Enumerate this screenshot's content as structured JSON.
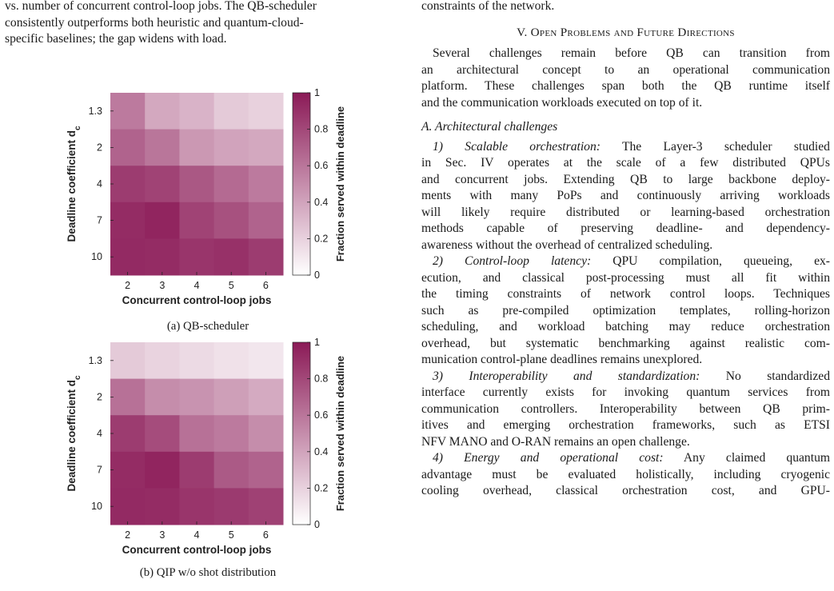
{
  "left_column": {
    "caption_tail_lines": [
      "vs. number of concurrent control-loop jobs. The QB-scheduler",
      "consistently outperforms both heuristic and quantum-cloud-",
      "specific baselines; the gap widens with load."
    ]
  },
  "figures": {
    "a": {
      "caption": "(a) QB-scheduler"
    },
    "b": {
      "caption": "(b) QIP w/o shot distribution"
    },
    "colorbar": {
      "label": "Fraction served within deadline",
      "ticks": [
        "0",
        "0.2",
        "0.4",
        "0.6",
        "0.8",
        "1"
      ]
    },
    "colors": {
      "high": "#8b1a57",
      "low": "#ffffff"
    }
  },
  "right_column": {
    "top_line": "constraints of the network.",
    "section_heading": "V. Open Problems and Future Directions",
    "intro_lines": [
      "Several challenges remain before QB can transition from",
      "an architectural concept to an operational communication",
      "platform. These challenges span both the QB runtime itself",
      "and the communication workloads executed on top of it."
    ],
    "subsection_heading": "A. Architectural challenges",
    "items": [
      {
        "title": "1) Scalable orchestration:",
        "lines": [
          " The Layer-3 scheduler studied",
          "in Sec. IV operates at the scale of a few distributed QPUs",
          "and concurrent jobs. Extending QB to large backbone deploy-",
          "ments with many PoPs and continuously arriving workloads",
          "will likely require distributed or learning-based orchestration",
          "methods capable of preserving deadline- and dependency-",
          "awareness without the overhead of centralized scheduling."
        ]
      },
      {
        "title": "2) Control-loop latency:",
        "lines": [
          " QPU compilation, queueing, ex-",
          "ecution, and classical post-processing must all fit within",
          "the timing constraints of network control loops. Techniques",
          "such as pre-compiled optimization templates, rolling-horizon",
          "scheduling, and workload batching may reduce orchestration",
          "overhead, but systematic benchmarking against realistic com-",
          "munication control-plane deadlines remains unexplored."
        ]
      },
      {
        "title": "3) Interoperability and standardization:",
        "lines": [
          " No standardized",
          "interface currently exists for invoking quantum services from",
          "communication controllers. Interoperability between QB prim-",
          "itives and emerging orchestration frameworks, such as ETSI",
          "NFV MANO and O-RAN remains an open challenge."
        ]
      },
      {
        "title": "4) Energy and operational cost:",
        "lines": [
          " Any claimed quantum",
          "advantage must be evaluated holistically, including cryogenic",
          "cooling overhead, classical orchestration cost, and GPU-"
        ]
      }
    ]
  },
  "chart_data": [
    {
      "type": "heatmap",
      "title": "(a) QB-scheduler",
      "xlabel": "Concurrent control-loop jobs",
      "ylabel": "Deadline coefficient d_c",
      "x": [
        "2",
        "3",
        "4",
        "5",
        "6"
      ],
      "y": [
        "1.3",
        "2",
        "4",
        "7",
        "10"
      ],
      "values": [
        [
          0.58,
          0.38,
          0.33,
          0.23,
          0.2
        ],
        [
          0.68,
          0.6,
          0.45,
          0.4,
          0.38
        ],
        [
          0.85,
          0.82,
          0.73,
          0.65,
          0.58
        ],
        [
          0.92,
          0.95,
          0.82,
          0.76,
          0.68
        ],
        [
          0.93,
          0.92,
          0.88,
          0.9,
          0.85
        ]
      ],
      "colorbar_label": "Fraction served within deadline",
      "zlim": [
        0,
        1
      ]
    },
    {
      "type": "heatmap",
      "title": "(b) QIP w/o shot distribution",
      "xlabel": "Concurrent control-loop jobs",
      "ylabel": "Deadline coefficient d_c",
      "x": [
        "2",
        "3",
        "4",
        "5",
        "6"
      ],
      "y": [
        "1.3",
        "2",
        "4",
        "7",
        "10"
      ],
      "values": [
        [
          0.23,
          0.19,
          0.16,
          0.13,
          0.11
        ],
        [
          0.62,
          0.5,
          0.47,
          0.42,
          0.37
        ],
        [
          0.85,
          0.78,
          0.62,
          0.58,
          0.5
        ],
        [
          0.92,
          0.95,
          0.85,
          0.72,
          0.68
        ],
        [
          0.93,
          0.92,
          0.88,
          0.86,
          0.83
        ]
      ],
      "colorbar_label": "Fraction served within deadline",
      "zlim": [
        0,
        1
      ]
    }
  ]
}
